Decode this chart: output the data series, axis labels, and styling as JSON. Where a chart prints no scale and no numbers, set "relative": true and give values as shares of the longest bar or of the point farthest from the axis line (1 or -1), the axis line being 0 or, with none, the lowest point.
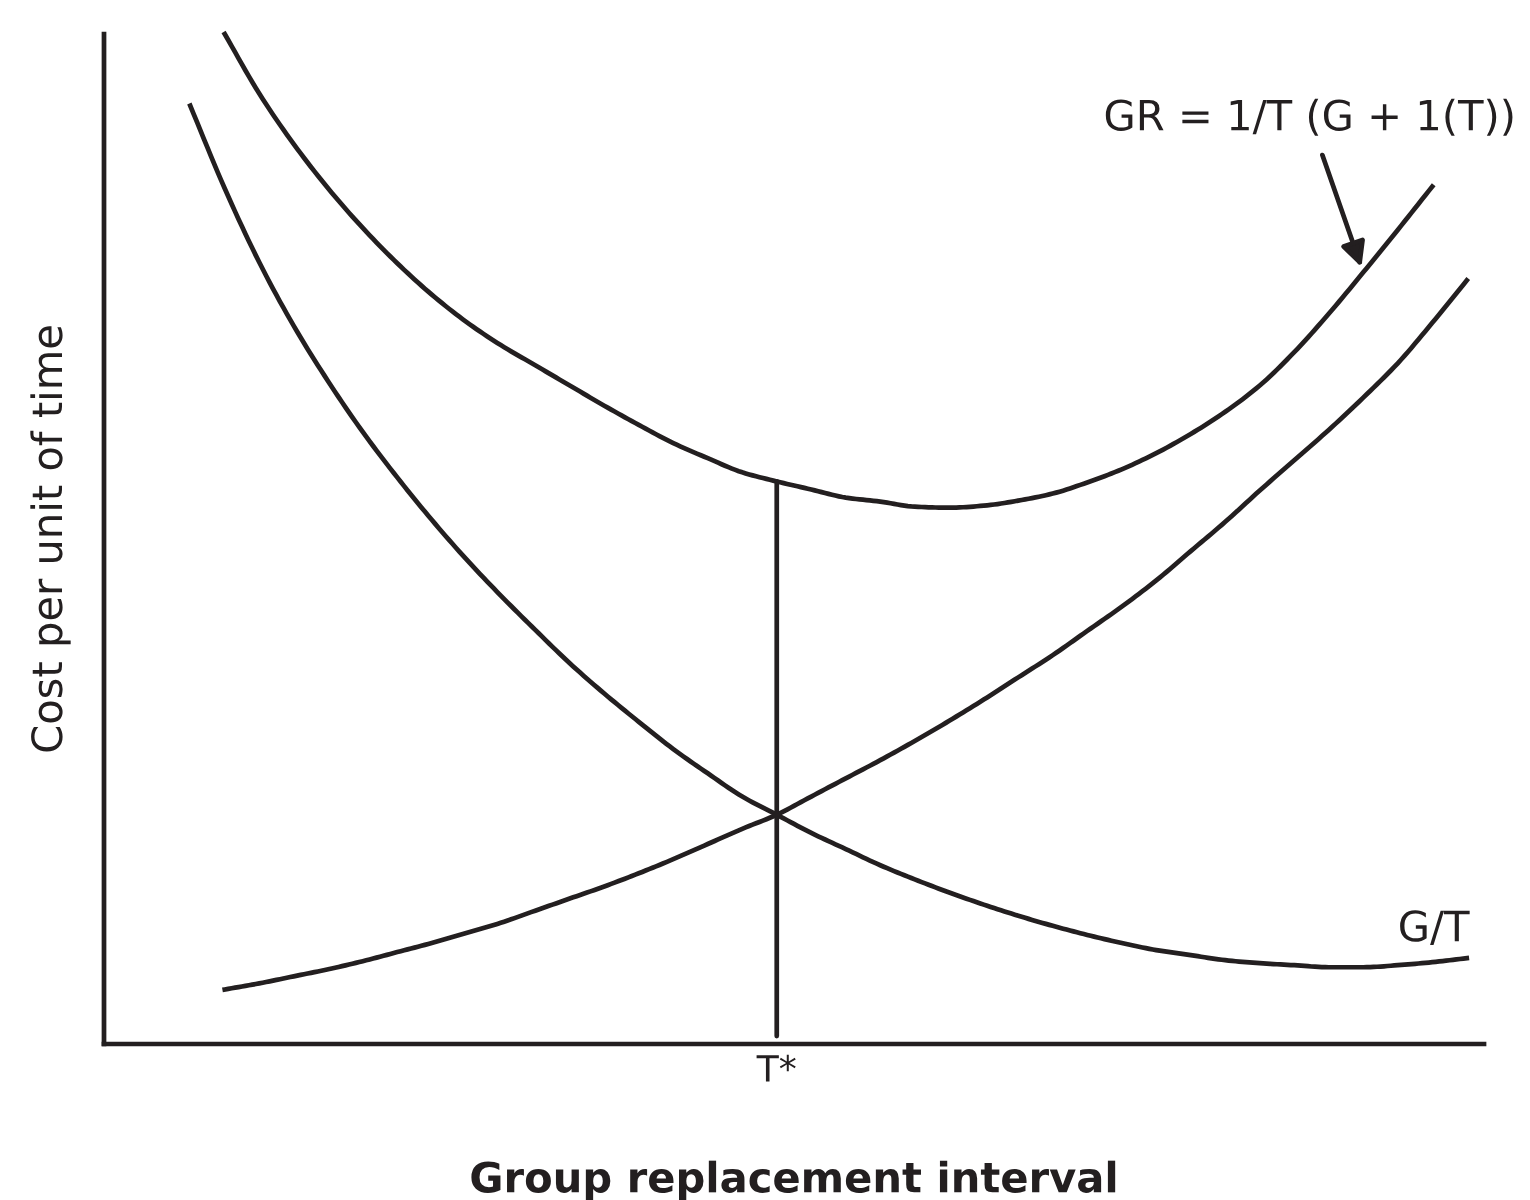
{
  "chart_data": {
    "type": "line",
    "relative": true,
    "xlabel": "Group replacement interval",
    "ylabel": "Cost per unit of time",
    "line_style": "solid",
    "categories": [
      null,
      null,
      null,
      null,
      null,
      null,
      null,
      null,
      null,
      null,
      null,
      null,
      null,
      null,
      null,
      null,
      null,
      null,
      null,
      null,
      null,
      null,
      null,
      null,
      null,
      null,
      null,
      null,
      null,
      null,
      null,
      null,
      null,
      null,
      null,
      null,
      null,
      null,
      null,
      null
    ],
    "annotations": [
      {
        "text": "T*",
        "y": 0.557
      }
    ],
    "series": [
      {
        "name": "GR = 1/T (G + 1(T))",
        "color": "#231f20",
        "values": [
          null,
          null,
          null,
          1.0,
          0.941,
          0.891,
          0.847,
          0.808,
          0.773,
          0.742,
          0.715,
          0.692,
          0.672,
          0.652,
          0.632,
          0.613,
          0.595,
          0.58,
          0.566,
          0.557,
          0.549,
          0.541,
          0.537,
          0.532,
          0.531,
          0.533,
          0.538,
          0.545,
          0.556,
          0.569,
          0.585,
          0.604,
          0.626,
          0.652,
          0.685,
          0.723,
          0.764,
          0.806,
          0.849,
          null
        ]
      },
      {
        "name": "G/T",
        "color": "#231f20",
        "values": [
          null,
          null,
          0.929,
          0.847,
          0.774,
          0.711,
          0.656,
          0.606,
          0.561,
          0.519,
          0.48,
          0.444,
          0.41,
          0.377,
          0.347,
          0.319,
          0.292,
          0.268,
          0.245,
          0.227,
          0.209,
          0.193,
          0.177,
          0.163,
          0.15,
          0.138,
          0.127,
          0.117,
          0.108,
          0.1,
          0.093,
          0.088,
          0.083,
          0.08,
          0.078,
          0.076,
          0.076,
          0.078,
          0.081,
          0.085
        ]
      },
      {
        "color": "#231f20",
        "values": [
          null,
          null,
          null,
          0.054,
          0.06,
          0.067,
          0.074,
          0.082,
          0.091,
          0.1,
          0.11,
          0.12,
          0.132,
          0.144,
          0.156,
          0.169,
          0.183,
          0.198,
          0.213,
          0.227,
          0.245,
          0.263,
          0.281,
          0.3,
          0.32,
          0.341,
          0.363,
          0.385,
          0.409,
          0.433,
          0.459,
          0.488,
          0.517,
          0.548,
          0.578,
          0.608,
          0.64,
          0.674,
          0.714,
          0.756
        ]
      }
    ]
  }
}
